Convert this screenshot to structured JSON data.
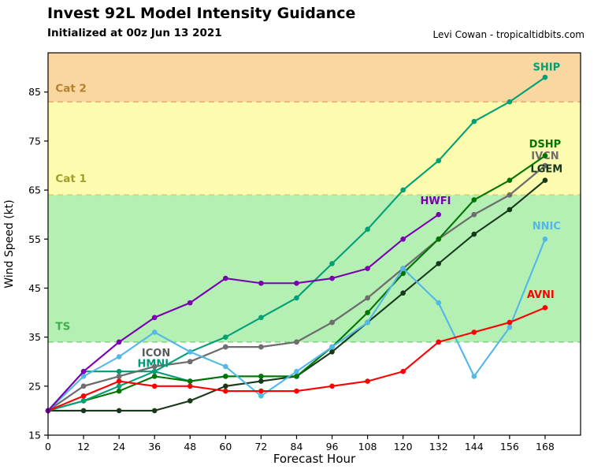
{
  "header": {
    "title": "Invest 92L Model Intensity Guidance",
    "subtitle": "Initialized at 00z Jun 13 2021",
    "credit": "Levi Cowan - tropicaltidbits.com"
  },
  "chart_data": {
    "type": "line",
    "title": "Invest 92L Model Intensity Guidance",
    "subtitle": "Initialized at 00z Jun 13 2021",
    "xlabel": "Forecast Hour",
    "ylabel": "Wind Speed (kt)",
    "xlim": [
      0,
      180
    ],
    "ylim": [
      15,
      93
    ],
    "x_ticks": [
      0,
      12,
      24,
      36,
      48,
      60,
      72,
      84,
      96,
      108,
      120,
      132,
      144,
      156,
      168
    ],
    "y_ticks": [
      15,
      25,
      35,
      45,
      55,
      65,
      75,
      85
    ],
    "grid": false,
    "legend": "inline-labels",
    "hours": [
      0,
      12,
      24,
      36,
      48,
      60,
      72,
      84,
      96,
      108,
      120,
      132,
      144,
      156,
      168
    ],
    "bands": [
      {
        "name": "TS",
        "from": 34,
        "to": 64,
        "fill": "#b4efb4",
        "line_color": "#86d686"
      },
      {
        "name": "Cat 1",
        "from": 64,
        "to": 83,
        "fill": "#fdfbae",
        "line_color": "#d8d06e"
      },
      {
        "name": "Cat 2",
        "from": 83,
        "to": 93,
        "fill": "#fad7a0",
        "line_color": "#e6b273"
      }
    ],
    "band_labels": [
      {
        "text": "TS",
        "color": "#3fae4c",
        "at": [
          2.5,
          36.5
        ]
      },
      {
        "text": "Cat 1",
        "color": "#9f9f2e",
        "at": [
          2.5,
          66.6
        ]
      },
      {
        "text": "Cat 2",
        "color": "#b5802e",
        "at": [
          2.5,
          85.0
        ]
      }
    ],
    "series": [
      {
        "name": "HMNI",
        "color": "#009977",
        "values": [
          20,
          28,
          28,
          28,
          26,
          27,
          27,
          27
        ],
        "label_at": [
          35.5,
          28.9
        ],
        "anchor": "middle"
      },
      {
        "name": "ICON",
        "color": "#5a5a5a",
        "values": [
          20,
          25,
          27,
          29,
          30,
          33,
          33,
          34,
          38,
          43,
          49,
          55,
          60,
          64,
          70
        ],
        "label_at": [
          36.5,
          31.1
        ],
        "anchor": "middle"
      },
      {
        "name": "IVCN",
        "color": "#6e6e6e",
        "values": [
          20,
          25,
          27,
          29,
          30,
          33,
          33,
          34,
          38,
          43,
          49,
          55,
          60,
          64,
          70
        ],
        "label_at": [
          168,
          71.3
        ],
        "anchor": "middle"
      },
      {
        "name": "LGEM",
        "color": "#17391a",
        "values": [
          20,
          20,
          20,
          20,
          22,
          25,
          26,
          27,
          32,
          38,
          44,
          50,
          56,
          61,
          67
        ],
        "label_at": [
          168.5,
          68.6
        ],
        "anchor": "middle"
      },
      {
        "name": "DSHP",
        "color": "#007500",
        "values": [
          20,
          22,
          24,
          27,
          26,
          27,
          27,
          27,
          33,
          40,
          48,
          55,
          63,
          67,
          72
        ],
        "label_at": [
          168,
          73.7
        ],
        "anchor": "middle"
      },
      {
        "name": "SHIP",
        "color": "#00a077",
        "values": [
          20,
          22,
          25,
          28,
          32,
          35,
          39,
          43,
          50,
          57,
          65,
          71,
          79,
          83,
          88
        ],
        "label_at": [
          168.5,
          89.4
        ],
        "anchor": "middle"
      },
      {
        "name": "NNIC",
        "color": "#53b8e8",
        "values": [
          20,
          27,
          31,
          36,
          32,
          29,
          23,
          28,
          33,
          38,
          49,
          42,
          27,
          37,
          55
        ],
        "label_at": [
          168.5,
          57.0
        ],
        "anchor": "middle"
      },
      {
        "name": "AVNI",
        "color": "#ff0000",
        "values": [
          20,
          23,
          26,
          25,
          25,
          24,
          24,
          24,
          25,
          26,
          28,
          34,
          36,
          38,
          41
        ],
        "label_at": [
          166.5,
          43.0
        ],
        "anchor": "middle"
      },
      {
        "name": "HWFI",
        "color": "#7a00b0",
        "values": [
          20,
          28,
          34,
          39,
          42,
          47,
          46,
          46,
          47,
          49,
          55,
          60
        ],
        "label_at": [
          131,
          62.1
        ],
        "anchor": "middle"
      }
    ]
  }
}
